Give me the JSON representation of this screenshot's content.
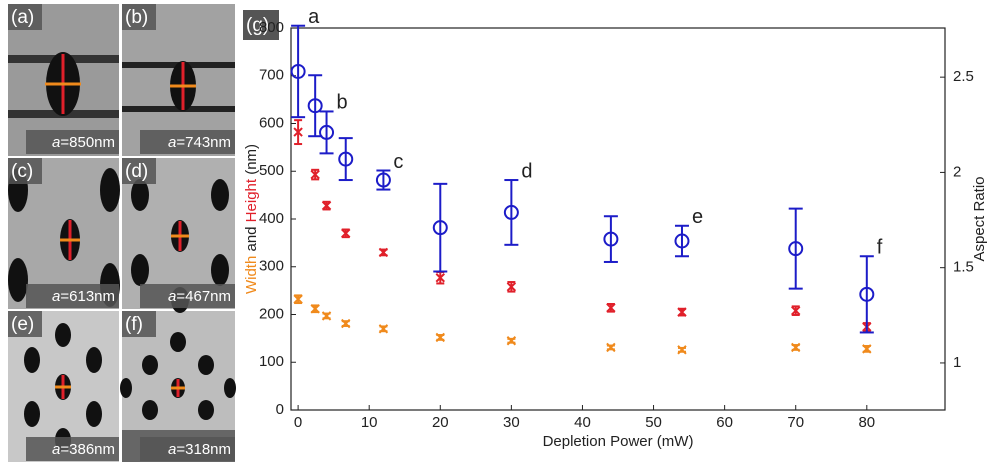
{
  "panels": [
    {
      "label": "(a)",
      "caption": [
        "a",
        "=850nm"
      ]
    },
    {
      "label": "(b)",
      "caption": [
        "a",
        "=743nm"
      ]
    },
    {
      "label": "(c)",
      "caption": [
        "a",
        "=613nm"
      ]
    },
    {
      "label": "(d)",
      "caption": [
        "a",
        "=467nm"
      ]
    },
    {
      "label": "(e)",
      "caption": [
        "a",
        "=386nm"
      ]
    },
    {
      "label": "(f)",
      "caption": [
        "a",
        "=318nm"
      ]
    }
  ],
  "chart_data": {
    "type": "errorbar",
    "panel_label": "(g)",
    "xlabel": "Depletion Power (mW)",
    "ylabel_joiner": " and ",
    "ylabel_unit": " (nm)",
    "x": [
      0,
      2.4,
      4,
      6.7,
      12,
      20,
      30,
      44,
      54,
      70,
      80
    ],
    "series": [
      {
        "name": "Height",
        "color": "#e0202a",
        "marker": "x",
        "values": [
          582,
          493,
          428,
          370,
          330,
          277,
          258,
          214,
          205,
          208,
          174
        ],
        "errors": [
          25,
          10,
          8,
          8,
          6,
          12,
          10,
          8,
          7,
          9,
          8
        ]
      },
      {
        "name": "Width",
        "color": "#f08a1c",
        "marker": "x",
        "values": [
          232,
          212,
          197,
          181,
          170,
          152,
          145,
          131,
          126,
          131,
          128
        ],
        "errors": [
          8,
          7,
          5,
          5,
          5,
          5,
          4,
          4,
          4,
          5,
          6
        ]
      },
      {
        "name": "Aspect Ratio",
        "color": "#1c1cc8",
        "marker": "o",
        "axis": "y2",
        "values": [
          2.53,
          2.35,
          2.21,
          2.07,
          1.96,
          1.71,
          1.79,
          1.65,
          1.64,
          1.6,
          1.36
        ],
        "errors": [
          0.24,
          0.16,
          0.11,
          0.11,
          0.05,
          0.23,
          0.17,
          0.12,
          0.08,
          0.21,
          0.2
        ],
        "point_labels": [
          "a",
          null,
          "b",
          null,
          "c",
          null,
          "d",
          null,
          "e",
          null,
          "f"
        ]
      }
    ],
    "xlim": [
      -1,
      91
    ],
    "xticks": [
      0,
      10,
      20,
      30,
      40,
      50,
      60,
      70,
      80
    ],
    "ylim": [
      0,
      800
    ],
    "yticks": [
      0,
      100,
      200,
      300,
      400,
      500,
      600,
      700,
      800
    ],
    "y2lim": [
      0.753,
      2.758
    ],
    "y2ticks": [
      1,
      1.5,
      2,
      2.5
    ]
  }
}
